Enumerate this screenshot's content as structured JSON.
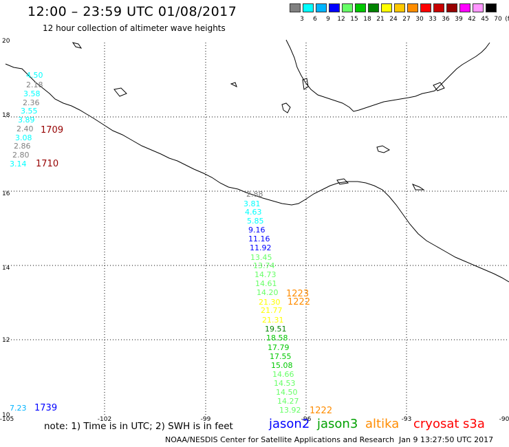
{
  "header": {
    "title": "12:00 – 23:59 UTC 01/08/2017",
    "subtitle": "12 hour collection of altimeter wave heights"
  },
  "scale": {
    "unit_label": "(ft)",
    "entries": [
      {
        "label": "3",
        "color": "#808080"
      },
      {
        "label": "6",
        "color": "#00ffff"
      },
      {
        "label": "9",
        "color": "#00b4ff"
      },
      {
        "label": "12",
        "color": "#0000ff"
      },
      {
        "label": "15",
        "color": "#66ff66"
      },
      {
        "label": "18",
        "color": "#00c800"
      },
      {
        "label": "21",
        "color": "#008200"
      },
      {
        "label": "24",
        "color": "#ffff00"
      },
      {
        "label": "27",
        "color": "#ffc800"
      },
      {
        "label": "30",
        "color": "#ff8c00"
      },
      {
        "label": "33",
        "color": "#ff0000"
      },
      {
        "label": "36",
        "color": "#c80000"
      },
      {
        "label": "39",
        "color": "#960000"
      },
      {
        "label": "42",
        "color": "#ff00ff"
      },
      {
        "label": "45",
        "color": "#ff96ff"
      },
      {
        "label": "70",
        "color": "#000000"
      }
    ]
  },
  "axes": {
    "lon_ticks": [
      "-105",
      "-102",
      "-99",
      "-96",
      "-93",
      "-90"
    ],
    "lat_ticks": [
      "20",
      "18",
      "16",
      "14",
      "12",
      "10"
    ]
  },
  "observations": {
    "west_track": [
      {
        "text": "4.50",
        "color": "#00ffff"
      },
      {
        "text": "2.18",
        "color": "#808080"
      },
      {
        "text": "3.58",
        "color": "#00ffff"
      },
      {
        "text": "2.36",
        "color": "#808080"
      },
      {
        "text": "3.55",
        "color": "#00ffff"
      },
      {
        "text": "3.89",
        "color": "#00ffff"
      },
      {
        "text": "2.40",
        "color": "#808080"
      },
      {
        "text": "3.08",
        "color": "#00ffff"
      },
      {
        "text": "2.86",
        "color": "#808080"
      },
      {
        "text": "2.80",
        "color": "#808080"
      },
      {
        "text": "3.14",
        "color": "#00ffff"
      }
    ],
    "mid_track": [
      {
        "text": "2.88",
        "color": "#808080"
      },
      {
        "text": "3.81",
        "color": "#00ffff"
      },
      {
        "text": "4.63",
        "color": "#00ffff"
      },
      {
        "text": "5.85",
        "color": "#00ffff"
      },
      {
        "text": "9.16",
        "color": "#0000ff"
      },
      {
        "text": "11.16",
        "color": "#0000ff"
      },
      {
        "text": "11.92",
        "color": "#0000ff"
      },
      {
        "text": "13.45",
        "color": "#66ff66"
      },
      {
        "text": "13.74",
        "color": "#66ff66"
      },
      {
        "text": "14.73",
        "color": "#66ff66"
      },
      {
        "text": "14.61",
        "color": "#66ff66"
      },
      {
        "text": "14.20",
        "color": "#66ff66"
      },
      {
        "text": "21.30",
        "color": "#ffff00"
      },
      {
        "text": "21.77",
        "color": "#ffff00"
      },
      {
        "text": "21.31",
        "color": "#ffff00"
      },
      {
        "text": "19.51",
        "color": "#008200"
      },
      {
        "text": "18.58",
        "color": "#00c800"
      },
      {
        "text": "17.79",
        "color": "#00c800"
      },
      {
        "text": "17.55",
        "color": "#00c800"
      },
      {
        "text": "15.08",
        "color": "#00c800"
      },
      {
        "text": "14.66",
        "color": "#66ff66"
      },
      {
        "text": "14.53",
        "color": "#66ff66"
      },
      {
        "text": "14.50",
        "color": "#66ff66"
      },
      {
        "text": "14.27",
        "color": "#66ff66"
      },
      {
        "text": "13.92",
        "color": "#66ff66"
      }
    ],
    "bottom_left": {
      "text": "7.23",
      "color": "#00b4ff"
    },
    "time_labels": [
      {
        "text": "1709",
        "color": "#960000"
      },
      {
        "text": "1710",
        "color": "#960000"
      },
      {
        "text": "1223",
        "color": "#ff8c00"
      },
      {
        "text": "1222",
        "color": "#ff8c00"
      },
      {
        "text": "1739",
        "color": "#0000ff"
      },
      {
        "text": "1222",
        "color": "#ff8c00"
      }
    ]
  },
  "footer": {
    "note": "note: 1) Time is in UTC; 2) SWH is in feet",
    "satellites": [
      {
        "name": "jason2",
        "color": "#0000ff"
      },
      {
        "name": "jason3",
        "color": "#00a000"
      },
      {
        "name": "altika",
        "color": "#ff8c00"
      },
      {
        "name": "cryosat",
        "color": "#ff0000"
      },
      {
        "name": "s3a",
        "color": "#ff0000"
      }
    ],
    "credit": "NOAA/NESDIS Center for Satellite Applications and Research",
    "timestamp": "Jan  9 13:27:50 UTC 2017"
  }
}
